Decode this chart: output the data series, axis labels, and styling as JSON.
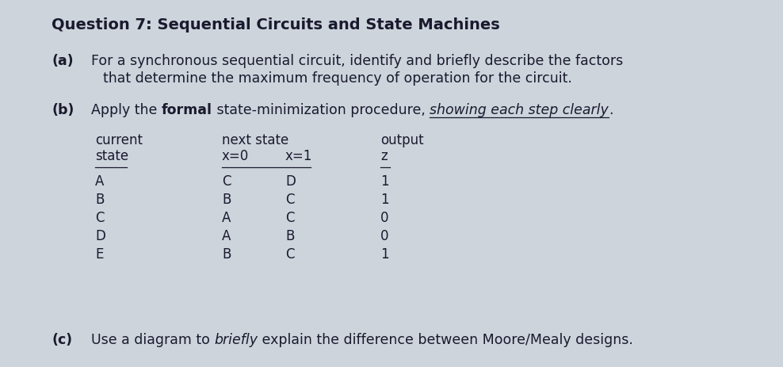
{
  "background_color": "#cdd4dc",
  "title": "Question 7: Sequential Circuits and State Machines",
  "part_a_label": "(a)",
  "part_a_line1": "For a synchronous sequential circuit, identify and briefly describe the factors",
  "part_a_line2": "that determine the maximum frequency of operation for the circuit.",
  "part_b_label": "(b)",
  "part_b_seg1": "Apply the ",
  "part_b_seg2": "formal",
  "part_b_seg3": " state-minimization procedure, ",
  "part_b_seg4": "showing each step clearly",
  "part_b_seg5": ".",
  "tbl_col1_header1": "current",
  "tbl_col1_header2": "state",
  "tbl_col2_header1": "next state",
  "tbl_col2a": "x=0",
  "tbl_col2b": "x=1",
  "tbl_col3_header1": "output",
  "tbl_col3_header2": "z",
  "states": [
    "A",
    "B",
    "C",
    "D",
    "E"
  ],
  "next_x0": [
    "C",
    "B",
    "A",
    "A",
    "B"
  ],
  "next_x1": [
    "D",
    "C",
    "C",
    "B",
    "C"
  ],
  "output_z": [
    "1",
    "1",
    "0",
    "0",
    "1"
  ],
  "part_c_label": "(c)",
  "part_c_seg1": "Use a diagram to ",
  "part_c_seg2": "briefly",
  "part_c_seg3": " explain the difference between Moore/Mealy designs.",
  "fs_title": 14,
  "fs_body": 12.5,
  "fs_table": 12,
  "text_color": "#1a1a2e"
}
